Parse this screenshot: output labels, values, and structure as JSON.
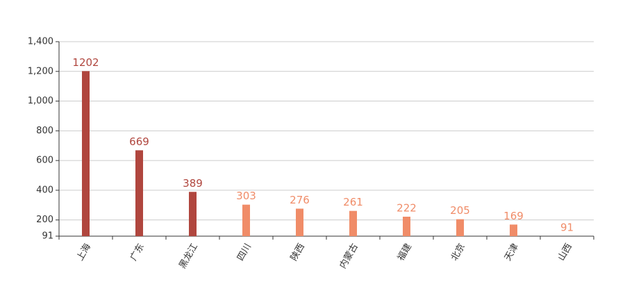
{
  "chart_data": {
    "type": "bar",
    "categories": [
      "上海",
      "广东",
      "黑龙江",
      "四川",
      "陕西",
      "内蒙古",
      "福建",
      "北京",
      "天津",
      "山西"
    ],
    "values": [
      1202,
      669,
      389,
      303,
      276,
      261,
      222,
      205,
      169,
      91
    ],
    "colors": [
      "#b0463e",
      "#b0463e",
      "#b0463e",
      "#f08c68",
      "#f08c68",
      "#f08c68",
      "#f08c68",
      "#f08c68",
      "#f08c68",
      "#f08c68"
    ],
    "ylim": [
      91,
      1400
    ],
    "yticks": [
      91,
      200,
      400,
      600,
      800,
      {
        "value": 1000,
        "label": "1,000"
      },
      {
        "value": 1200,
        "label": "1,200"
      },
      {
        "value": 1400,
        "label": "1,400"
      }
    ],
    "grid": true
  }
}
